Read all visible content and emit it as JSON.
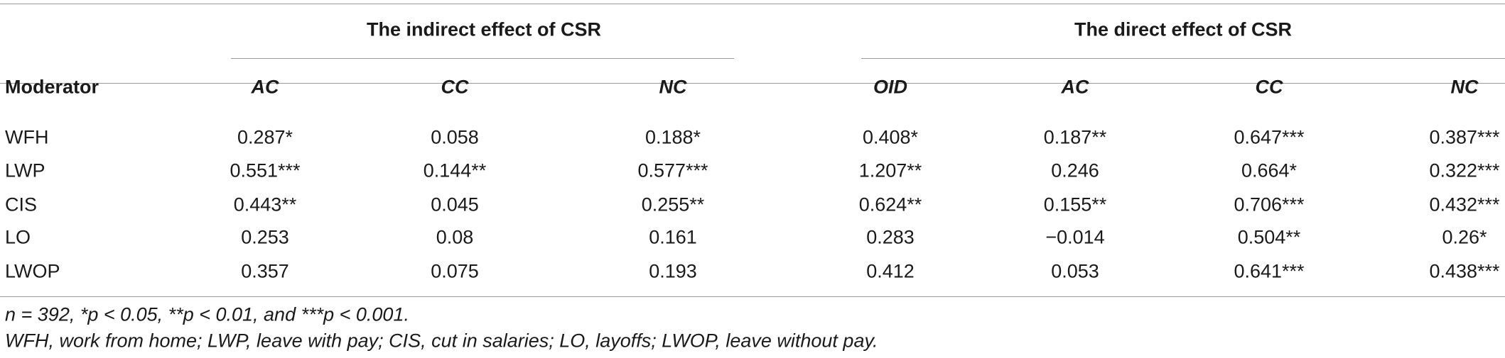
{
  "table": {
    "group_headers": {
      "indirect": "The indirect effect of CSR",
      "direct": "The direct effect of CSR"
    },
    "columns": [
      "Moderator",
      "AC",
      "CC",
      "NC",
      "OID",
      "AC",
      "CC",
      "NC"
    ],
    "rows": [
      [
        "WFH",
        "0.287*",
        "0.058",
        "0.188*",
        "0.408*",
        "0.187**",
        "0.647***",
        "0.387***"
      ],
      [
        "LWP",
        "0.551***",
        "0.144**",
        "0.577***",
        "1.207**",
        "0.246",
        "0.664*",
        "0.322***"
      ],
      [
        "CIS",
        "0.443**",
        "0.045",
        "0.255**",
        "0.624**",
        "0.155**",
        "0.706***",
        "0.432***"
      ],
      [
        "LO",
        "0.253",
        "0.08",
        "0.161",
        "0.283",
        "−0.014",
        "0.504**",
        "0.26*"
      ],
      [
        "LWOP",
        "0.357",
        "0.075",
        "0.193",
        "0.412",
        "0.053",
        "0.641***",
        "0.438***"
      ]
    ]
  },
  "footnotes": [
    "n = 392, *p < 0.05, **p < 0.01, and ***p < 0.001.",
    "WFH, work from home; LWP, leave with pay; CIS, cut in salaries; LO, layoffs; LWOP, leave without pay."
  ]
}
